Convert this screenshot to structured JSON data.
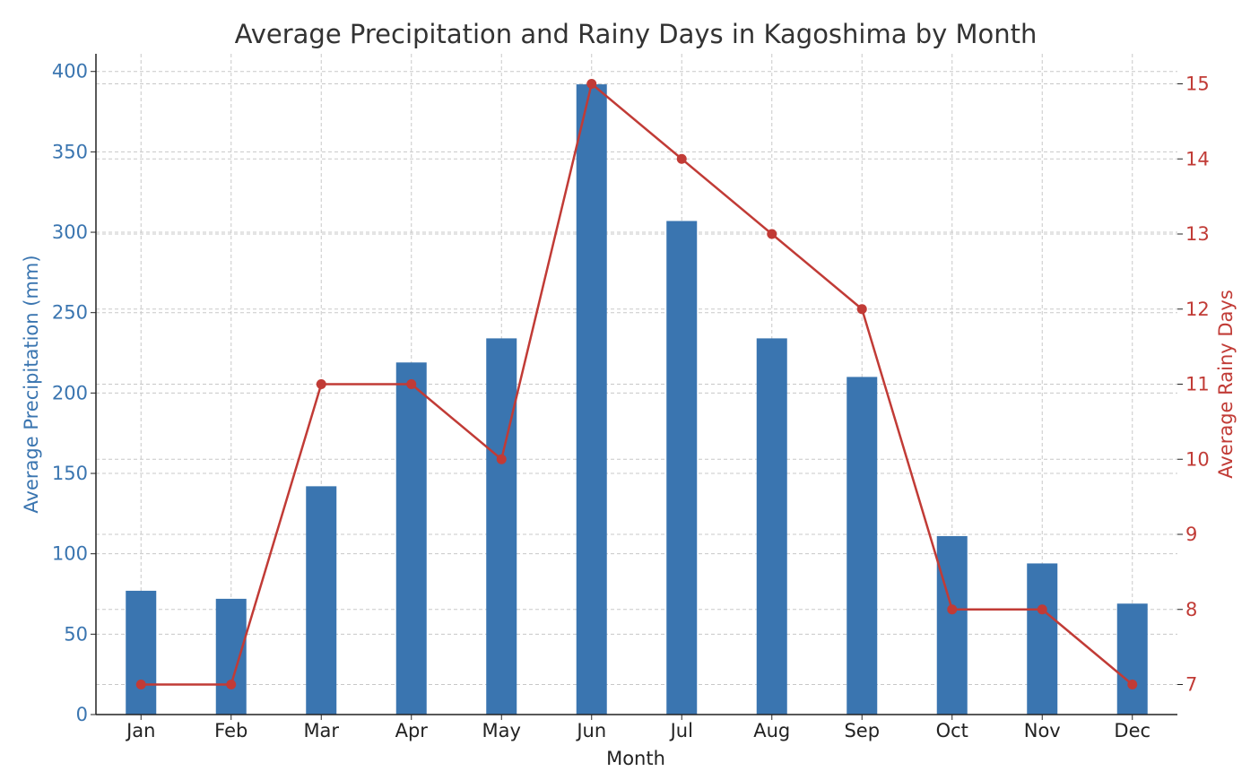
{
  "chart_data": {
    "type": "bar+line",
    "title": "Average Precipitation and Rainy Days in Kagoshima by Month",
    "xlabel": "Month",
    "categories": [
      "Jan",
      "Feb",
      "Mar",
      "Apr",
      "May",
      "Jun",
      "Jul",
      "Aug",
      "Sep",
      "Oct",
      "Nov",
      "Dec"
    ],
    "series": [
      {
        "name": "Average Precipitation (mm)",
        "type": "bar",
        "axis": "left",
        "color": "#3a75b0",
        "values": [
          77,
          72,
          142,
          219,
          234,
          392,
          307,
          234,
          210,
          111,
          94,
          69
        ]
      },
      {
        "name": "Average Rainy Days",
        "type": "line",
        "axis": "right",
        "color": "#c13b36",
        "marker": "circle",
        "values": [
          7,
          7,
          11,
          11,
          10,
          15,
          14,
          13,
          12,
          8,
          8,
          7
        ]
      }
    ],
    "y_left": {
      "label": "Average Precipitation (mm)",
      "range": [
        0,
        411
      ],
      "ticks": [
        0,
        50,
        100,
        150,
        200,
        250,
        300,
        350,
        400
      ],
      "color": "#3a75b0"
    },
    "y_right": {
      "label": "Average Rainy Days",
      "range": [
        6.6,
        15.4
      ],
      "ticks": [
        7,
        8,
        9,
        10,
        11,
        12,
        13,
        14,
        15
      ],
      "color": "#c13b36"
    },
    "grid": true
  }
}
